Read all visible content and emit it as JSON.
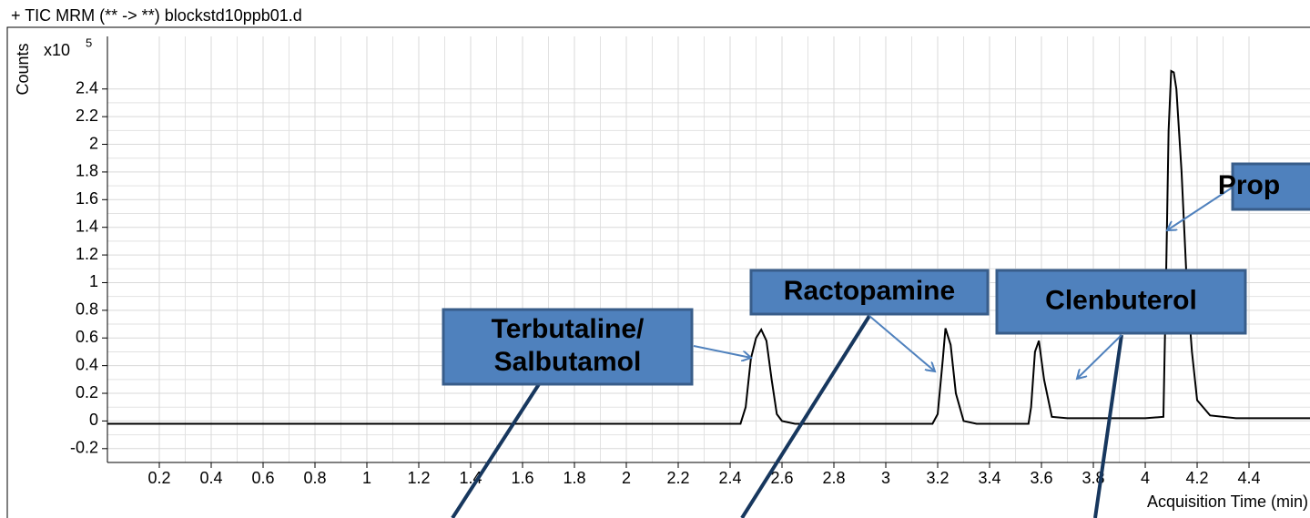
{
  "chart_data": {
    "type": "line",
    "title": "+ TIC MRM (** -> **) blockstd10ppb01.d",
    "y_label": "Counts",
    "y_scale_label": "x10",
    "y_scale_exponent": "5",
    "x_label": "Acquisition Time (min)",
    "color": "#000000",
    "x": [
      0,
      2.44,
      2.46,
      2.48,
      2.5,
      2.52,
      2.54,
      2.56,
      2.58,
      2.6,
      2.65,
      3.18,
      3.2,
      3.22,
      3.23,
      3.25,
      3.27,
      3.3,
      3.35,
      3.38,
      3.4,
      3.55,
      3.56,
      3.575,
      3.59,
      3.61,
      3.64,
      3.7,
      3.9,
      4.0,
      4.07,
      4.08,
      4.09,
      4.1,
      4.11,
      4.12,
      4.14,
      4.16,
      4.18,
      4.2,
      4.25,
      4.35,
      4.64
    ],
    "values": [
      -0.02,
      -0.02,
      0.1,
      0.45,
      0.6,
      0.66,
      0.58,
      0.3,
      0.05,
      0,
      -0.02,
      -0.02,
      0.05,
      0.45,
      0.67,
      0.55,
      0.2,
      0.0,
      -0.02,
      -0.02,
      -0.02,
      -0.02,
      0.1,
      0.5,
      0.58,
      0.3,
      0.03,
      0.02,
      0.02,
      0.02,
      0.03,
      1.0,
      2.1,
      2.53,
      2.52,
      2.4,
      1.8,
      1.0,
      0.5,
      0.15,
      0.04,
      0.02,
      0.02
    ],
    "xlim": [
      0,
      4.635
    ],
    "ylim": [
      -0.3,
      2.78
    ],
    "xticks": [
      0.2,
      0.4,
      0.6,
      0.8,
      1,
      1.2,
      1.4,
      1.6,
      1.8,
      2,
      2.2,
      2.4,
      2.6,
      2.8,
      3,
      3.2,
      3.4,
      3.6,
      3.8,
      4,
      4.2,
      4.4
    ],
    "yticks": [
      -0.2,
      0,
      0.2,
      0.4,
      0.6,
      0.8,
      1,
      1.2,
      1.4,
      1.6,
      1.8,
      2,
      2.2,
      2.4
    ],
    "grid": true,
    "annotations": [
      {
        "lines": [
          "Terbutaline/",
          "Salbutamol"
        ]
      },
      {
        "lines": [
          "Ractopamine"
        ]
      },
      {
        "lines": [
          "Clenbuterol"
        ]
      },
      {
        "lines": [
          "Prop"
        ]
      }
    ]
  }
}
